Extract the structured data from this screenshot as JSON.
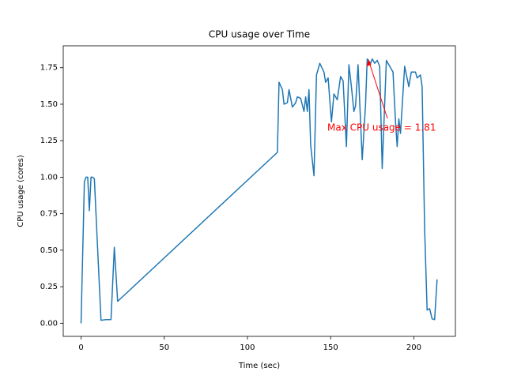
{
  "chart_data": {
    "type": "line",
    "title": "CPU usage over Time",
    "x_label": "Time (sec)",
    "y_label": "CPU usage (cores)",
    "x": [
      0,
      2,
      3,
      4,
      5,
      6,
      7,
      8,
      10,
      12,
      15,
      18,
      20,
      22,
      118,
      119,
      121,
      122,
      124,
      125,
      127,
      129,
      130,
      132,
      134,
      135,
      136,
      137,
      138,
      140,
      141.5,
      143.5,
      146,
      147,
      148.5,
      150.5,
      152,
      154,
      156,
      157.5,
      159.5,
      161,
      162.5,
      164,
      165,
      166.5,
      169,
      171,
      172,
      174,
      175,
      176.5,
      178,
      179.5,
      181,
      183.5,
      187.5,
      189,
      190,
      191,
      192,
      194.5,
      197,
      198.5,
      201,
      202,
      204,
      205,
      206.5,
      208,
      209.5,
      211,
      212.5,
      214
    ],
    "values": [
      0.0,
      0.97,
      1.0,
      1.0,
      0.77,
      1.0,
      1.0,
      0.99,
      0.5,
      0.02,
      0.025,
      0.025,
      0.52,
      0.15,
      1.17,
      1.65,
      1.6,
      1.5,
      1.51,
      1.6,
      1.48,
      1.51,
      1.55,
      1.54,
      1.45,
      1.55,
      1.45,
      1.6,
      1.22,
      1.01,
      1.7,
      1.78,
      1.72,
      1.65,
      1.68,
      1.38,
      1.57,
      1.53,
      1.69,
      1.66,
      1.21,
      1.77,
      1.62,
      1.45,
      1.49,
      1.77,
      1.12,
      1.5,
      1.81,
      1.78,
      1.81,
      1.78,
      1.8,
      1.76,
      1.06,
      1.8,
      1.72,
      1.38,
      1.21,
      1.4,
      1.3,
      1.76,
      1.62,
      1.72,
      1.72,
      1.68,
      1.7,
      1.62,
      0.65,
      0.09,
      0.1,
      0.03,
      0.025,
      0.3
    ],
    "color": "#1f77b4",
    "xlim": [
      -10.7,
      225
    ],
    "xticks": [
      0,
      50,
      100,
      150,
      200
    ],
    "ylim": [
      -0.09,
      1.9
    ],
    "yticks": [
      {
        "value": 0,
        "label": "0.00"
      },
      {
        "value": 0.25,
        "label": "0.25"
      },
      {
        "value": 0.5,
        "label": "0.50"
      },
      {
        "value": 0.75,
        "label": "0.75"
      },
      {
        "value": 1,
        "label": "1.00"
      },
      {
        "value": 1.25,
        "label": "1.25"
      },
      {
        "value": 1.5,
        "label": "1.50"
      },
      {
        "value": 1.75,
        "label": "1.75"
      }
    ],
    "annotation": {
      "text": "Max CPU usage = 1.81",
      "color": "#ff0000"
    }
  }
}
